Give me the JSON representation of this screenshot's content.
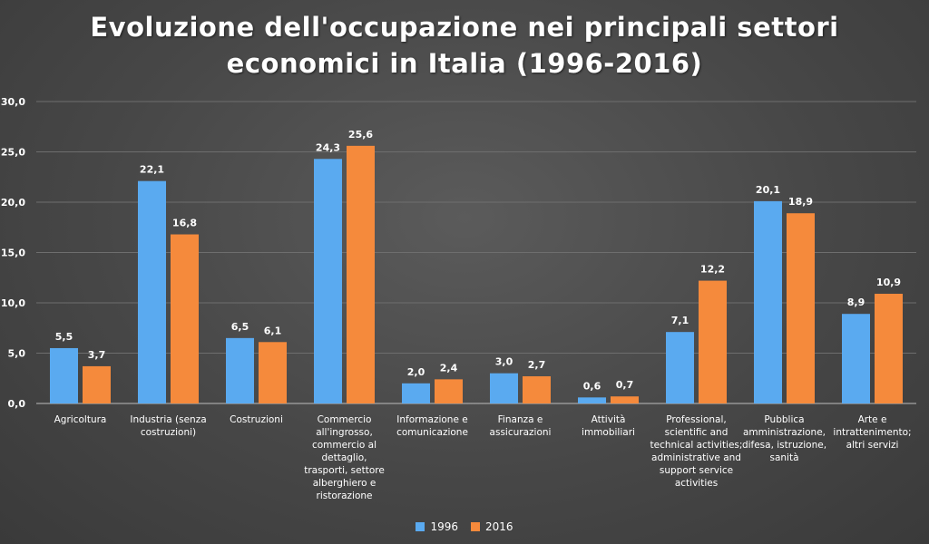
{
  "chart_data": {
    "type": "bar",
    "title_line1": "Evoluzione dell'occupazione nei principali settori",
    "title_line2": "economici in Italia (1996-2016)",
    "categories": [
      [
        "Agricoltura"
      ],
      [
        "Industria (senza",
        "costruzioni)"
      ],
      [
        "Costruzioni"
      ],
      [
        "Commercio",
        "all'ingrosso,",
        "commercio al",
        "dettaglio,",
        "trasporti, settore",
        "alberghiero e",
        "ristorazione"
      ],
      [
        "Informazione e",
        "comunicazione"
      ],
      [
        "Finanza e",
        "assicurazioni"
      ],
      [
        "Attività",
        "immobiliari"
      ],
      [
        "Professional,",
        "scientific and",
        "technical activities;",
        "administrative and",
        "support service",
        "activities"
      ],
      [
        "Pubblica",
        "amministrazione,",
        "difesa, istruzione,",
        "sanità"
      ],
      [
        "Arte e",
        "intrattenimento;",
        "altri servizi"
      ]
    ],
    "series": [
      {
        "name": "1996",
        "color": "#5aaaf0",
        "values": [
          5.5,
          22.1,
          6.5,
          24.3,
          2.0,
          3.0,
          0.6,
          7.1,
          20.1,
          8.9
        ]
      },
      {
        "name": "2016",
        "color": "#f58a3c",
        "values": [
          3.7,
          16.8,
          6.1,
          25.6,
          2.4,
          2.7,
          0.7,
          12.2,
          18.9,
          10.9
        ]
      }
    ],
    "value_labels": [
      [
        "5,5",
        "22,1",
        "6,5",
        "24,3",
        "2,0",
        "3,0",
        "0,6",
        "7,1",
        "20,1",
        "8,9"
      ],
      [
        "3,7",
        "16,8",
        "6,1",
        "25,6",
        "2,4",
        "2,7",
        "0,7",
        "12,2",
        "18,9",
        "10,9"
      ]
    ],
    "ylim": [
      0,
      30
    ],
    "yticks": [
      "0,0",
      "5,0",
      "10,0",
      "15,0",
      "20,0",
      "25,0",
      "30,0"
    ],
    "grid": true,
    "legend_position": "bottom"
  }
}
